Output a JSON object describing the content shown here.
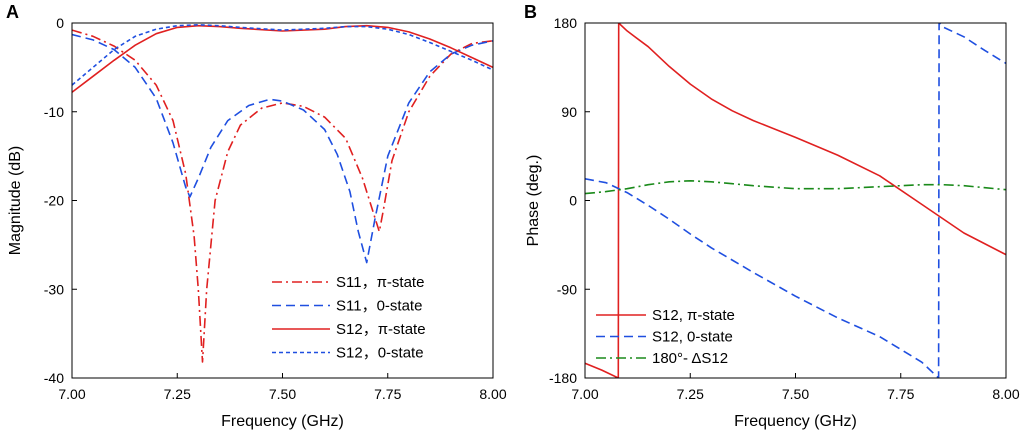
{
  "chart_data": [
    {
      "panel_label": "A",
      "type": "line",
      "xlabel": "Frequency (GHz)",
      "ylabel": "Magnitude (dB)",
      "xlim": [
        7.0,
        8.0
      ],
      "ylim": [
        -40,
        0
      ],
      "xticks": [
        "7.00",
        "7.25",
        "7.50",
        "7.75",
        "8.00"
      ],
      "yticks": [
        "0",
        "-10",
        "-20",
        "-30",
        "-40"
      ],
      "legend_position": "bottom-right",
      "series": [
        {
          "name": "S11，π-state",
          "color": "#e02020",
          "dash": "dashdot",
          "x": [
            7.0,
            7.05,
            7.1,
            7.15,
            7.2,
            7.24,
            7.27,
            7.29,
            7.3,
            7.31,
            7.32,
            7.34,
            7.37,
            7.4,
            7.45,
            7.5,
            7.55,
            7.6,
            7.65,
            7.69,
            7.72,
            7.73,
            7.74,
            7.76,
            7.8,
            7.85,
            7.9,
            7.95,
            8.0
          ],
          "y": [
            -0.8,
            -1.5,
            -2.6,
            -4.2,
            -7.0,
            -11.0,
            -17.0,
            -24.0,
            -30.0,
            -38.2,
            -30.0,
            -20.0,
            -14.5,
            -11.5,
            -9.6,
            -9.0,
            -9.4,
            -10.6,
            -13.0,
            -17.5,
            -22.0,
            -23.5,
            -21.0,
            -15.5,
            -10.0,
            -6.0,
            -3.5,
            -2.3,
            -2.0
          ]
        },
        {
          "name": "S11，0-state",
          "color": "#1f4fe0",
          "dash": "dashed",
          "x": [
            7.0,
            7.05,
            7.1,
            7.15,
            7.2,
            7.24,
            7.27,
            7.28,
            7.3,
            7.33,
            7.37,
            7.42,
            7.47,
            7.5,
            7.55,
            7.6,
            7.63,
            7.66,
            7.68,
            7.7,
            7.72,
            7.75,
            7.8,
            7.85,
            7.9,
            7.95,
            8.0
          ],
          "y": [
            -1.3,
            -1.9,
            -3.0,
            -5.0,
            -8.5,
            -13.5,
            -18.5,
            -19.6,
            -17.5,
            -14.0,
            -11.0,
            -9.3,
            -8.6,
            -8.8,
            -9.8,
            -12.0,
            -14.8,
            -19.0,
            -23.5,
            -27.0,
            -22.0,
            -15.0,
            -9.0,
            -5.5,
            -3.5,
            -2.5,
            -2.0
          ]
        },
        {
          "name": "S12，π-state",
          "color": "#e02020",
          "dash": "solid",
          "x": [
            7.0,
            7.05,
            7.1,
            7.15,
            7.2,
            7.25,
            7.3,
            7.35,
            7.4,
            7.5,
            7.6,
            7.65,
            7.7,
            7.75,
            7.8,
            7.85,
            7.9,
            7.95,
            8.0
          ],
          "y": [
            -7.8,
            -6.0,
            -4.2,
            -2.5,
            -1.2,
            -0.5,
            -0.3,
            -0.4,
            -0.6,
            -0.9,
            -0.7,
            -0.4,
            -0.3,
            -0.5,
            -1.0,
            -1.8,
            -2.8,
            -3.9,
            -5.0
          ]
        },
        {
          "name": "S12，0-state",
          "color": "#1f4fe0",
          "dash": "dotted",
          "x": [
            7.0,
            7.05,
            7.1,
            7.15,
            7.2,
            7.25,
            7.3,
            7.35,
            7.4,
            7.5,
            7.6,
            7.65,
            7.7,
            7.75,
            7.8,
            7.85,
            7.9,
            7.95,
            8.0
          ],
          "y": [
            -7.0,
            -5.0,
            -3.0,
            -1.5,
            -0.7,
            -0.3,
            -0.2,
            -0.3,
            -0.5,
            -0.8,
            -0.6,
            -0.4,
            -0.4,
            -0.7,
            -1.3,
            -2.2,
            -3.2,
            -4.2,
            -5.3
          ]
        }
      ]
    },
    {
      "panel_label": "B",
      "type": "line",
      "xlabel": "Frequency (GHz)",
      "ylabel": "Phase (deg.)",
      "xlim": [
        7.0,
        8.0
      ],
      "ylim": [
        -180,
        180
      ],
      "xticks": [
        "7.00",
        "7.25",
        "7.50",
        "7.75",
        "8.00"
      ],
      "yticks": [
        "180",
        "90",
        "0",
        "-90",
        "-180"
      ],
      "legend_position": "bottom-left",
      "series": [
        {
          "name": "S12, π-state",
          "color": "#e02020",
          "dash": "solid",
          "x": [
            7.0,
            7.04,
            7.079,
            7.08,
            7.1,
            7.15,
            7.2,
            7.25,
            7.3,
            7.35,
            7.4,
            7.5,
            7.6,
            7.7,
            7.8,
            7.9,
            8.0
          ],
          "y": [
            -165,
            -172,
            -180,
            180,
            172,
            156,
            136,
            118,
            103,
            91,
            81,
            64,
            46,
            25,
            -4,
            -33,
            -55
          ]
        },
        {
          "name": "S12, 0-state",
          "color": "#1f4fe0",
          "dash": "dashed",
          "x": [
            7.0,
            7.05,
            7.1,
            7.15,
            7.2,
            7.25,
            7.3,
            7.4,
            7.5,
            7.6,
            7.7,
            7.8,
            7.84,
            7.841,
            7.85,
            7.9,
            7.95,
            8.0
          ],
          "y": [
            22,
            18,
            8,
            -5,
            -19,
            -34,
            -48,
            -73,
            -97,
            -119,
            -138,
            -164,
            -180,
            180,
            176,
            166,
            152,
            139
          ]
        },
        {
          "name": "180°- ΔS12",
          "color": "#1a8a1a",
          "dash": "dashdot",
          "x": [
            7.0,
            7.05,
            7.1,
            7.15,
            7.2,
            7.25,
            7.3,
            7.35,
            7.4,
            7.5,
            7.6,
            7.7,
            7.8,
            7.85,
            7.9,
            7.95,
            8.0
          ],
          "y": [
            7,
            9,
            12,
            16,
            19,
            20,
            19,
            17,
            15,
            12,
            12,
            14,
            16,
            16,
            15,
            13,
            11
          ]
        }
      ]
    }
  ]
}
